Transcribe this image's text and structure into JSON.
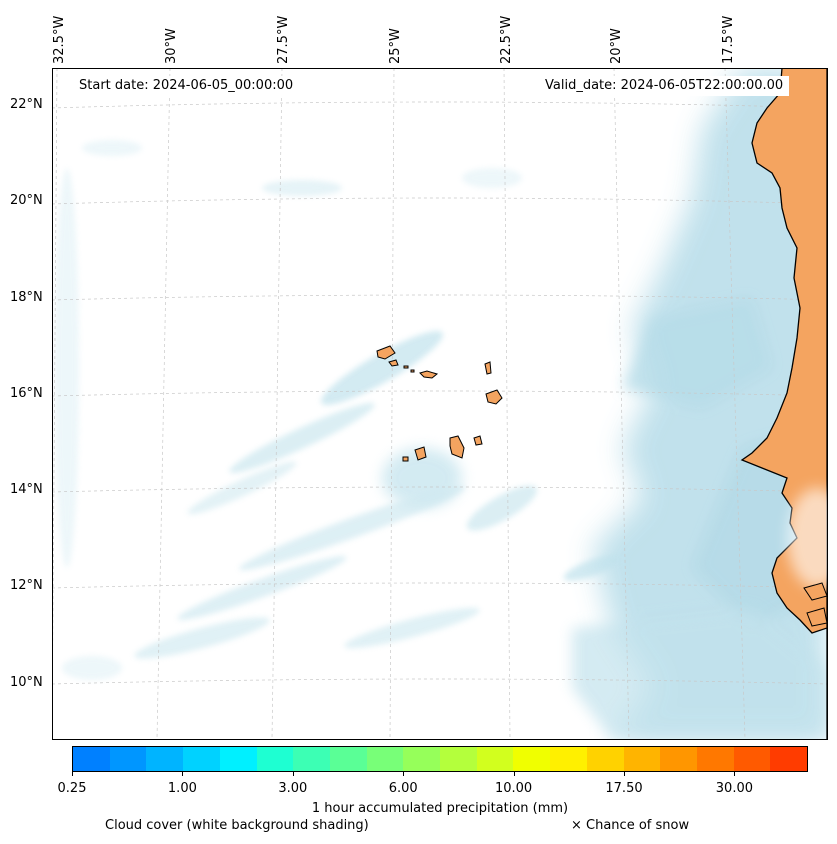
{
  "map": {
    "longitude_labels": [
      "32.5°W",
      "30°W",
      "27.5°W",
      "25°W",
      "22.5°W",
      "20°W",
      "17.5°W"
    ],
    "latitude_labels": [
      "22°N",
      "20°N",
      "18°N",
      "16°N",
      "14°N",
      "12°N",
      "10°N"
    ],
    "start_date": "Start date: 2024-06-05_00:00:00",
    "valid_date": "Valid_date: 2024-06-05T22:00:00.00",
    "region": "Cabo Verde and West African coast",
    "colors": {
      "land": "#f4a460",
      "cloud": "#add8e6",
      "coastline": "#000000",
      "gridline": "#bfbfbf"
    }
  },
  "colorbar": {
    "title": "1 hour accumulated precipitation (mm)",
    "tick_labels": [
      "0.25",
      "1.00",
      "3.00",
      "6.00",
      "10.00",
      "17.50",
      "30.00"
    ],
    "colors": [
      "#0080ff",
      "#0096ff",
      "#00b4ff",
      "#00d2ff",
      "#00f0ff",
      "#1effd2",
      "#3cffb4",
      "#5aff96",
      "#78ff78",
      "#96ff5a",
      "#b4ff3c",
      "#d2ff1e",
      "#f0ff00",
      "#fff000",
      "#ffd200",
      "#ffb400",
      "#ff9600",
      "#ff7800",
      "#ff5a00",
      "#ff3c00"
    ]
  },
  "footer": {
    "cloud_cover": "Cloud cover (white background shading)",
    "snow": "× Chance of snow"
  }
}
